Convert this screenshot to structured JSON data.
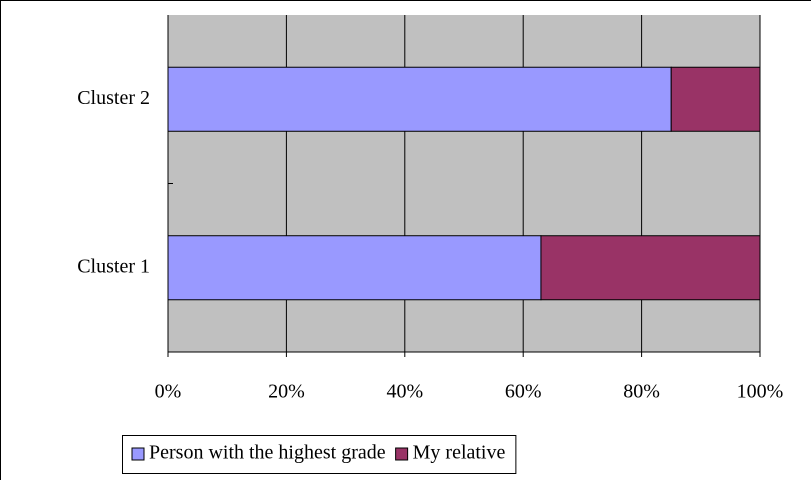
{
  "chart_data": {
    "type": "stacked-barh",
    "categories": [
      "Cluster 1",
      "Cluster 2"
    ],
    "series": [
      {
        "name": "Person with the highest grade",
        "color": "#9999ff",
        "values": [
          63,
          85
        ]
      },
      {
        "name": "My relative",
        "color": "#993366",
        "values": [
          37,
          15
        ]
      }
    ],
    "xlim": [
      0,
      100
    ],
    "xticks": [
      {
        "value": 0,
        "label": "0%"
      },
      {
        "value": 20,
        "label": "20%"
      },
      {
        "value": 40,
        "label": "40%"
      },
      {
        "value": 60,
        "label": "60%"
      },
      {
        "value": 80,
        "label": "80%"
      },
      {
        "value": 100,
        "label": "100%"
      }
    ],
    "grid": true,
    "legend": "bottom"
  }
}
